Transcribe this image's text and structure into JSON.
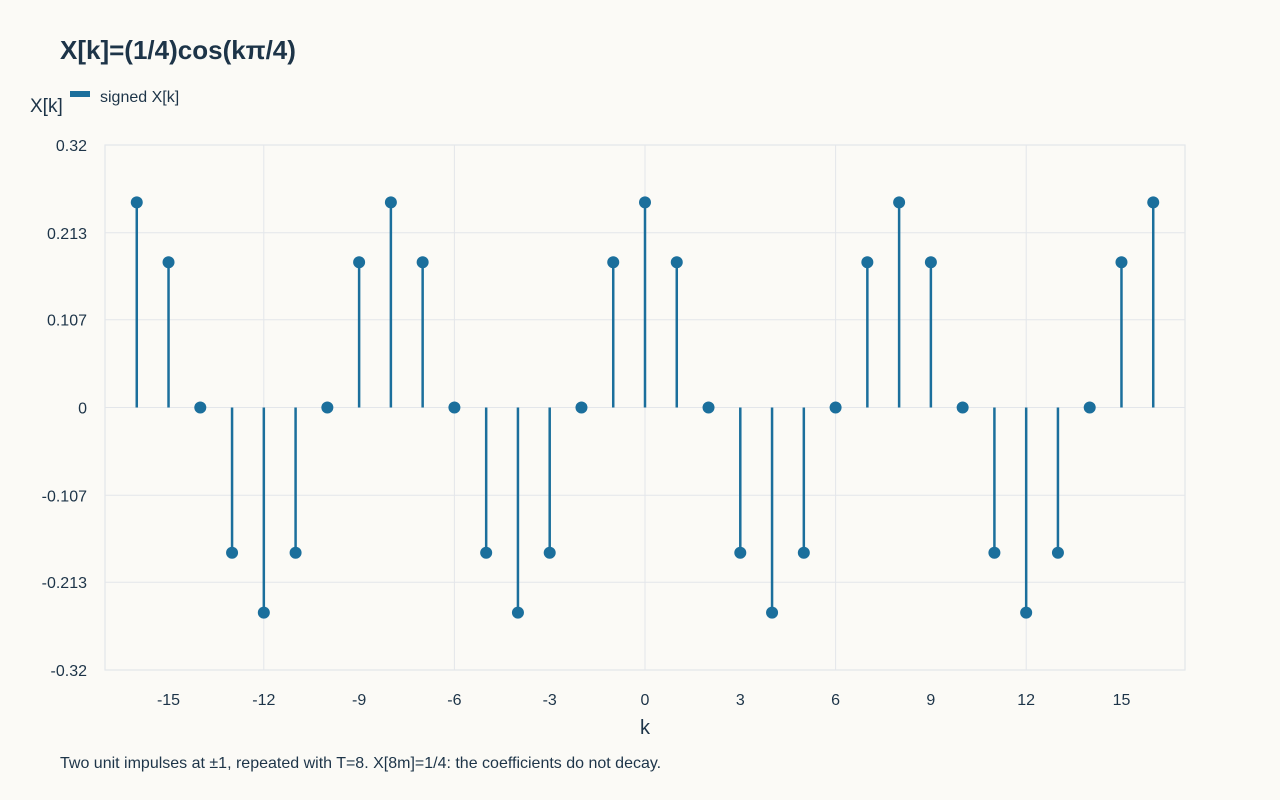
{
  "chart_data": {
    "type": "stem",
    "title": "X[k]=(1/4)cos(kπ/4)",
    "xlabel": "k",
    "ylabel": "X[k]",
    "legend": {
      "entries": [
        "signed X[k]"
      ],
      "placement": "top-left"
    },
    "grid": true,
    "xlim": [
      -17,
      17
    ],
    "ylim": [
      -0.32,
      0.32
    ],
    "x_ticks": [
      -15,
      -12,
      -9,
      -6,
      -3,
      0,
      3,
      6,
      9,
      12,
      15
    ],
    "y_ticks": [
      0.32,
      0.213,
      0.107,
      0,
      -0.107,
      -0.213,
      -0.32
    ],
    "y_tick_labels": [
      "0.32",
      "0.213",
      "0.107",
      "0",
      "-0.107",
      "-0.213",
      "-0.32"
    ],
    "series": [
      {
        "name": "signed X[k]",
        "color": "#1b6f9c",
        "x": [
          -16,
          -15,
          -14,
          -13,
          -12,
          -11,
          -10,
          -9,
          -8,
          -7,
          -6,
          -5,
          -4,
          -3,
          -2,
          -1,
          0,
          1,
          2,
          3,
          4,
          5,
          6,
          7,
          8,
          9,
          10,
          11,
          12,
          13,
          14,
          15,
          16
        ],
        "values": [
          0.25,
          0.177,
          0,
          -0.177,
          -0.25,
          -0.177,
          0,
          0.177,
          0.25,
          0.177,
          0,
          -0.177,
          -0.25,
          -0.177,
          0,
          0.177,
          0.25,
          0.177,
          0,
          -0.177,
          -0.25,
          -0.177,
          0,
          0.177,
          0.25,
          0.177,
          0,
          -0.177,
          -0.25,
          -0.177,
          0,
          0.177,
          0.25
        ]
      }
    ],
    "caption": "Two unit impulses at ±1, repeated with T=8. X[8m]=1/4: the coefficients do not decay."
  }
}
